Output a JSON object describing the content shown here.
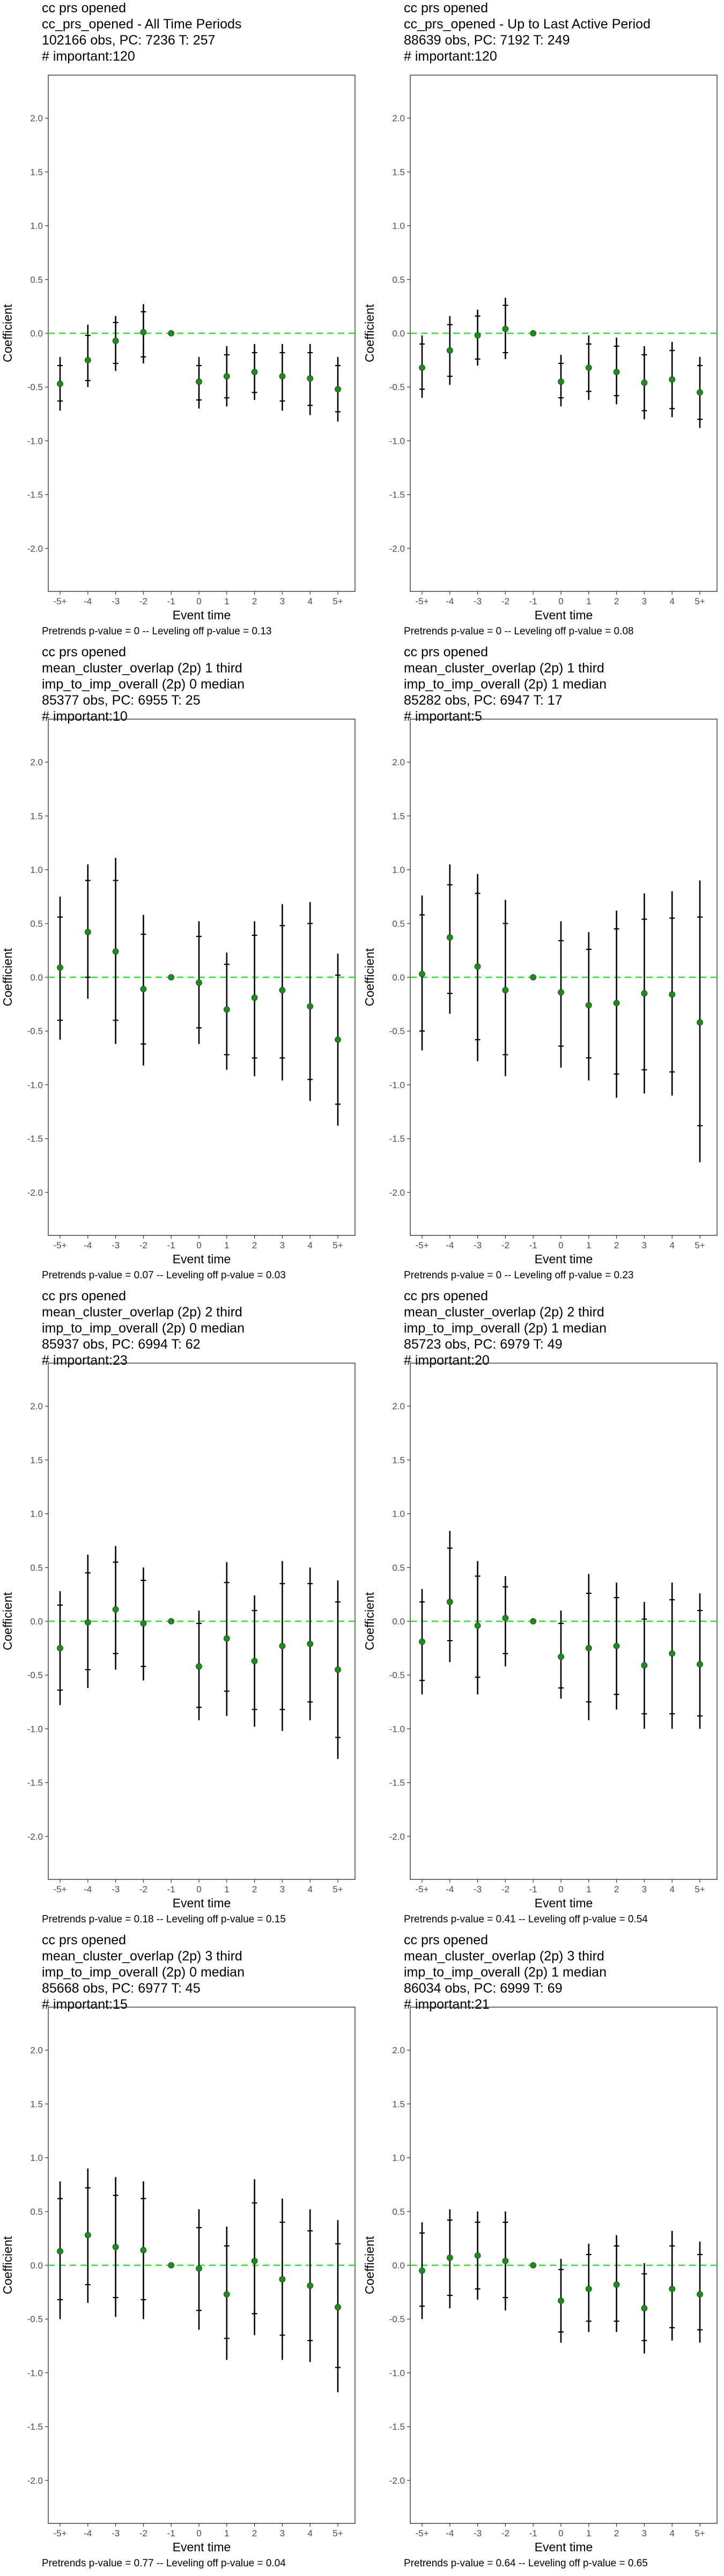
{
  "axis_common": {
    "xlabel": "Event time",
    "ylabel": "Coefficient",
    "x_ticks": [
      "-5+",
      "-4",
      "-3",
      "-2",
      "-1",
      "0",
      "1",
      "2",
      "3",
      "4",
      "5+"
    ],
    "y_ticks": [
      "2.0",
      "1.5",
      "1.0",
      "0.5",
      "0.0",
      "-0.5",
      "-1.0",
      "-1.5",
      "-2.0"
    ],
    "ylim": [
      -2.4,
      2.4
    ]
  },
  "colors": {
    "point": "#1f8a1f",
    "zero_line": "#33dd33",
    "bar": "#000000"
  },
  "chart_data": [
    {
      "type": "scatter",
      "title_lines": [
        "cc prs opened",
        "cc_prs_opened - All Time Periods",
        "102166 obs, PC: 7236 T: 257",
        "# important:120"
      ],
      "footer": "Pretrends p-value = 0 -- Leveling off p-value = 0.13",
      "x": [
        "-5+",
        "-4",
        "-3",
        "-2",
        "-1",
        "0",
        "1",
        "2",
        "3",
        "4",
        "5+"
      ],
      "est": [
        -0.47,
        -0.25,
        -0.07,
        0.01,
        0.0,
        -0.45,
        -0.4,
        -0.36,
        -0.4,
        -0.42,
        -0.52
      ],
      "ci95": [
        [
          -0.72,
          -0.22
        ],
        [
          -0.5,
          0.08
        ],
        [
          -0.35,
          0.16
        ],
        [
          -0.28,
          0.27
        ],
        [
          0.0,
          0.0
        ],
        [
          -0.7,
          -0.22
        ],
        [
          -0.68,
          -0.12
        ],
        [
          -0.62,
          -0.1
        ],
        [
          -0.72,
          -0.1
        ],
        [
          -0.76,
          -0.1
        ],
        [
          -0.82,
          -0.22
        ]
      ],
      "ci90": [
        [
          -0.63,
          -0.3
        ],
        [
          -0.44,
          -0.02
        ],
        [
          -0.28,
          0.1
        ],
        [
          -0.22,
          0.2
        ],
        [
          0.0,
          0.0
        ],
        [
          -0.62,
          -0.3
        ],
        [
          -0.6,
          -0.2
        ],
        [
          -0.55,
          -0.18
        ],
        [
          -0.63,
          -0.18
        ],
        [
          -0.67,
          -0.18
        ],
        [
          -0.73,
          -0.3
        ]
      ]
    },
    {
      "type": "scatter",
      "title_lines": [
        "cc prs opened",
        "cc_prs_opened - Up to Last Active Period",
        "88639 obs, PC: 7192 T: 249",
        "# important:120"
      ],
      "footer": "Pretrends p-value = 0 -- Leveling off p-value = 0.08",
      "x": [
        "-5+",
        "-4",
        "-3",
        "-2",
        "-1",
        "0",
        "1",
        "2",
        "3",
        "4",
        "5+"
      ],
      "est": [
        -0.32,
        -0.16,
        -0.02,
        0.04,
        0.0,
        -0.45,
        -0.32,
        -0.36,
        -0.46,
        -0.43,
        -0.55
      ],
      "ci95": [
        [
          -0.6,
          -0.02
        ],
        [
          -0.48,
          0.16
        ],
        [
          -0.3,
          0.22
        ],
        [
          -0.24,
          0.33
        ],
        [
          0.0,
          0.0
        ],
        [
          -0.68,
          -0.2
        ],
        [
          -0.62,
          -0.02
        ],
        [
          -0.66,
          -0.04
        ],
        [
          -0.8,
          -0.12
        ],
        [
          -0.78,
          -0.08
        ],
        [
          -0.88,
          -0.22
        ]
      ],
      "ci90": [
        [
          -0.52,
          -0.1
        ],
        [
          -0.4,
          0.08
        ],
        [
          -0.24,
          0.16
        ],
        [
          -0.18,
          0.26
        ],
        [
          0.0,
          0.0
        ],
        [
          -0.6,
          -0.28
        ],
        [
          -0.54,
          -0.1
        ],
        [
          -0.58,
          -0.12
        ],
        [
          -0.72,
          -0.2
        ],
        [
          -0.7,
          -0.16
        ],
        [
          -0.8,
          -0.3
        ]
      ]
    },
    {
      "type": "scatter",
      "title_lines": [
        "cc prs opened",
        "mean_cluster_overlap (2p) 1 third",
        "imp_to_imp_overall (2p) 0 median",
        "85377 obs, PC: 6955 T: 25",
        "# important:10"
      ],
      "footer": "Pretrends p-value = 0.07 -- Leveling off p-value = 0.03",
      "x": [
        "-5+",
        "-4",
        "-3",
        "-2",
        "-1",
        "0",
        "1",
        "2",
        "3",
        "4",
        "5+"
      ],
      "est": [
        0.09,
        0.42,
        0.24,
        -0.11,
        0.0,
        -0.05,
        -0.3,
        -0.19,
        -0.12,
        -0.27,
        -0.58
      ],
      "ci95": [
        [
          -0.58,
          0.75
        ],
        [
          -0.2,
          1.05
        ],
        [
          -0.62,
          1.11
        ],
        [
          -0.82,
          0.58
        ],
        [
          0.0,
          0.0
        ],
        [
          -0.62,
          0.52
        ],
        [
          -0.86,
          0.23
        ],
        [
          -0.92,
          0.52
        ],
        [
          -0.96,
          0.68
        ],
        [
          -1.15,
          0.7
        ],
        [
          -1.38,
          0.22
        ]
      ],
      "ci90": [
        [
          -0.4,
          0.56
        ],
        [
          0.0,
          0.9
        ],
        [
          -0.4,
          0.9
        ],
        [
          -0.62,
          0.4
        ],
        [
          0.0,
          0.0
        ],
        [
          -0.47,
          0.38
        ],
        [
          -0.72,
          0.12
        ],
        [
          -0.75,
          0.39
        ],
        [
          -0.75,
          0.48
        ],
        [
          -0.95,
          0.5
        ],
        [
          -1.18,
          0.02
        ]
      ]
    },
    {
      "type": "scatter",
      "title_lines": [
        "cc prs opened",
        "mean_cluster_overlap (2p) 1 third",
        "imp_to_imp_overall (2p) 1 median",
        "85282 obs, PC: 6947 T: 17",
        "# important:5"
      ],
      "footer": "Pretrends p-value = 0 -- Leveling off p-value = 0.23",
      "x": [
        "-5+",
        "-4",
        "-3",
        "-2",
        "-1",
        "0",
        "1",
        "2",
        "3",
        "4",
        "5+"
      ],
      "est": [
        0.03,
        0.37,
        0.1,
        -0.12,
        0.0,
        -0.14,
        -0.26,
        -0.24,
        -0.15,
        -0.16,
        -0.42
      ],
      "ci95": [
        [
          -0.68,
          0.76
        ],
        [
          -0.34,
          1.05
        ],
        [
          -0.78,
          0.96
        ],
        [
          -0.92,
          0.72
        ],
        [
          0.0,
          0.0
        ],
        [
          -0.84,
          0.52
        ],
        [
          -0.96,
          0.42
        ],
        [
          -1.12,
          0.62
        ],
        [
          -1.08,
          0.78
        ],
        [
          -1.1,
          0.8
        ],
        [
          -1.72,
          0.9
        ]
      ],
      "ci90": [
        [
          -0.5,
          0.58
        ],
        [
          -0.15,
          0.86
        ],
        [
          -0.58,
          0.78
        ],
        [
          -0.72,
          0.5
        ],
        [
          0.0,
          0.0
        ],
        [
          -0.64,
          0.34
        ],
        [
          -0.75,
          0.26
        ],
        [
          -0.9,
          0.45
        ],
        [
          -0.86,
          0.54
        ],
        [
          -0.88,
          0.55
        ],
        [
          -1.38,
          0.56
        ]
      ]
    },
    {
      "type": "scatter",
      "title_lines": [
        "cc prs opened",
        "mean_cluster_overlap (2p) 2 third",
        "imp_to_imp_overall (2p) 0 median",
        "85937 obs, PC: 6994 T: 62",
        "# important:23"
      ],
      "footer": "Pretrends p-value = 0.18 -- Leveling off p-value = 0.15",
      "x": [
        "-5+",
        "-4",
        "-3",
        "-2",
        "-1",
        "0",
        "1",
        "2",
        "3",
        "4",
        "5+"
      ],
      "est": [
        -0.25,
        -0.01,
        0.11,
        -0.02,
        0.0,
        -0.42,
        -0.16,
        -0.37,
        -0.23,
        -0.21,
        -0.45
      ],
      "ci95": [
        [
          -0.78,
          0.28
        ],
        [
          -0.62,
          0.62
        ],
        [
          -0.45,
          0.7
        ],
        [
          -0.55,
          0.5
        ],
        [
          0.0,
          0.0
        ],
        [
          -0.92,
          0.1
        ],
        [
          -0.88,
          0.55
        ],
        [
          -0.98,
          0.24
        ],
        [
          -1.02,
          0.56
        ],
        [
          -0.92,
          0.5
        ],
        [
          -1.28,
          0.38
        ]
      ],
      "ci90": [
        [
          -0.64,
          0.15
        ],
        [
          -0.45,
          0.45
        ],
        [
          -0.3,
          0.55
        ],
        [
          -0.42,
          0.38
        ],
        [
          0.0,
          0.0
        ],
        [
          -0.8,
          -0.02
        ],
        [
          -0.65,
          0.36
        ],
        [
          -0.82,
          0.1
        ],
        [
          -0.82,
          0.35
        ],
        [
          -0.75,
          0.35
        ],
        [
          -1.08,
          0.18
        ]
      ]
    },
    {
      "type": "scatter",
      "title_lines": [
        "cc prs opened",
        "mean_cluster_overlap (2p) 2 third",
        "imp_to_imp_overall (2p) 1 median",
        "85723 obs, PC: 6979 T: 49",
        "# important:20"
      ],
      "footer": "Pretrends p-value = 0.41 -- Leveling off p-value = 0.54",
      "x": [
        "-5+",
        "-4",
        "-3",
        "-2",
        "-1",
        "0",
        "1",
        "2",
        "3",
        "4",
        "5+"
      ],
      "est": [
        -0.19,
        0.18,
        -0.04,
        0.03,
        0.0,
        -0.33,
        -0.25,
        -0.23,
        -0.41,
        -0.3,
        -0.4
      ],
      "ci95": [
        [
          -0.68,
          0.3
        ],
        [
          -0.38,
          0.84
        ],
        [
          -0.68,
          0.56
        ],
        [
          -0.42,
          0.42
        ],
        [
          0.0,
          0.0
        ],
        [
          -0.72,
          0.1
        ],
        [
          -0.92,
          0.44
        ],
        [
          -0.82,
          0.36
        ],
        [
          -1.0,
          0.18
        ],
        [
          -1.0,
          0.36
        ],
        [
          -1.0,
          0.26
        ]
      ],
      "ci90": [
        [
          -0.55,
          0.18
        ],
        [
          -0.18,
          0.68
        ],
        [
          -0.52,
          0.42
        ],
        [
          -0.3,
          0.32
        ],
        [
          0.0,
          0.0
        ],
        [
          -0.62,
          -0.02
        ],
        [
          -0.75,
          0.26
        ],
        [
          -0.68,
          0.22
        ],
        [
          -0.86,
          0.02
        ],
        [
          -0.86,
          0.2
        ],
        [
          -0.88,
          0.1
        ]
      ]
    },
    {
      "type": "scatter",
      "title_lines": [
        "cc prs opened",
        "mean_cluster_overlap (2p) 3 third",
        "imp_to_imp_overall (2p) 0 median",
        "85668 obs, PC: 6977 T: 45",
        "# important:15"
      ],
      "footer": "Pretrends p-value = 0.77 -- Leveling off p-value = 0.04",
      "x": [
        "-5+",
        "-4",
        "-3",
        "-2",
        "-1",
        "0",
        "1",
        "2",
        "3",
        "4",
        "5+"
      ],
      "est": [
        0.13,
        0.28,
        0.17,
        0.14,
        0.0,
        -0.03,
        -0.27,
        0.04,
        -0.13,
        -0.19,
        -0.39
      ],
      "ci95": [
        [
          -0.5,
          0.78
        ],
        [
          -0.35,
          0.9
        ],
        [
          -0.48,
          0.82
        ],
        [
          -0.5,
          0.78
        ],
        [
          0.0,
          0.0
        ],
        [
          -0.6,
          0.52
        ],
        [
          -0.88,
          0.36
        ],
        [
          -0.65,
          0.8
        ],
        [
          -0.88,
          0.62
        ],
        [
          -0.9,
          0.52
        ],
        [
          -1.18,
          0.42
        ]
      ],
      "ci90": [
        [
          -0.32,
          0.62
        ],
        [
          -0.18,
          0.72
        ],
        [
          -0.3,
          0.65
        ],
        [
          -0.32,
          0.62
        ],
        [
          0.0,
          0.0
        ],
        [
          -0.42,
          0.35
        ],
        [
          -0.68,
          0.18
        ],
        [
          -0.45,
          0.58
        ],
        [
          -0.65,
          0.4
        ],
        [
          -0.7,
          0.32
        ],
        [
          -0.95,
          0.2
        ]
      ]
    },
    {
      "type": "scatter",
      "title_lines": [
        "cc prs opened",
        "mean_cluster_overlap (2p) 3 third",
        "imp_to_imp_overall (2p) 1 median",
        "86034 obs, PC: 6999 T: 69",
        "# important:21"
      ],
      "footer": "Pretrends p-value = 0.64 -- Leveling off p-value = 0.65",
      "x": [
        "-5+",
        "-4",
        "-3",
        "-2",
        "-1",
        "0",
        "1",
        "2",
        "3",
        "4",
        "5+"
      ],
      "est": [
        -0.05,
        0.07,
        0.09,
        0.04,
        0.0,
        -0.33,
        -0.22,
        -0.18,
        -0.4,
        -0.22,
        -0.27
      ],
      "ci95": [
        [
          -0.5,
          0.4
        ],
        [
          -0.4,
          0.52
        ],
        [
          -0.32,
          0.5
        ],
        [
          -0.42,
          0.5
        ],
        [
          0.0,
          0.0
        ],
        [
          -0.72,
          0.06
        ],
        [
          -0.62,
          0.2
        ],
        [
          -0.62,
          0.28
        ],
        [
          -0.82,
          0.02
        ],
        [
          -0.7,
          0.32
        ],
        [
          -0.72,
          0.22
        ]
      ],
      "ci90": [
        [
          -0.38,
          0.3
        ],
        [
          -0.28,
          0.42
        ],
        [
          -0.22,
          0.4
        ],
        [
          -0.3,
          0.4
        ],
        [
          0.0,
          0.0
        ],
        [
          -0.62,
          -0.04
        ],
        [
          -0.52,
          0.1
        ],
        [
          -0.52,
          0.18
        ],
        [
          -0.7,
          -0.08
        ],
        [
          -0.58,
          0.18
        ],
        [
          -0.6,
          0.1
        ]
      ]
    }
  ]
}
